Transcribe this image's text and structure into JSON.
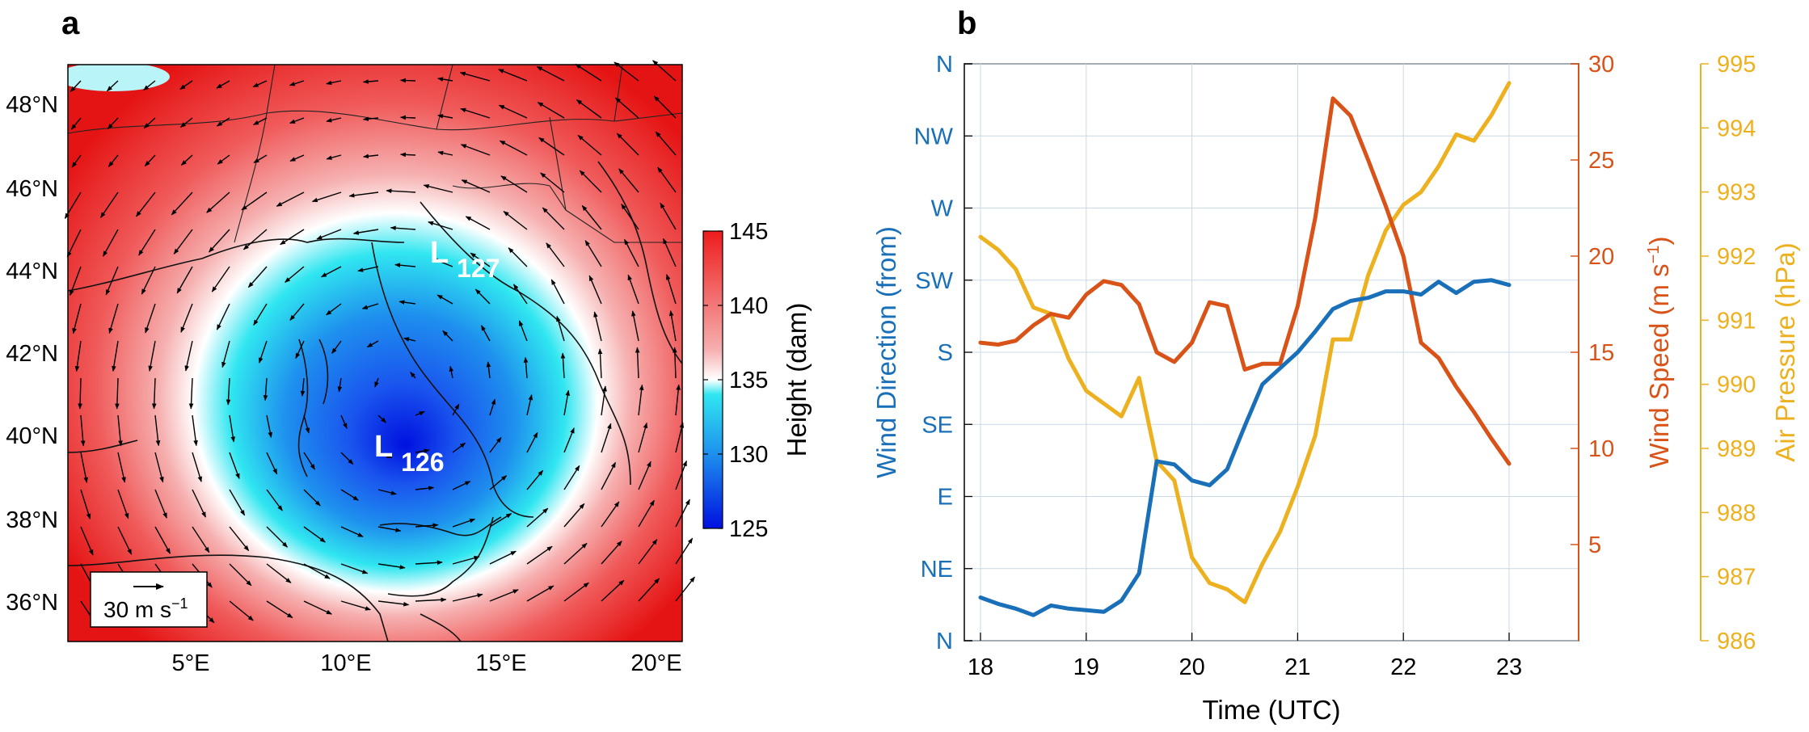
{
  "panel_a": {
    "label": "a",
    "lat_labels": [
      "48°N",
      "46°N",
      "44°N",
      "42°N",
      "40°N",
      "38°N",
      "36°N"
    ],
    "lon_labels": [
      "5°E",
      "10°E",
      "15°E",
      "20°E"
    ],
    "lows": [
      {
        "letter": "L",
        "value": "127"
      },
      {
        "letter": "L",
        "value": "126"
      }
    ],
    "reference_vector": {
      "value": "30 m s",
      "exponent": "−1"
    },
    "colorbar": {
      "title": "Height (dam)",
      "ticks": [
        "145",
        "140",
        "135",
        "130",
        "125"
      ],
      "colors": {
        "low": "#0010e0",
        "mid_low": "#1e90ee",
        "cyan": "#30e6f0",
        "white": "#ffffff",
        "pink": "#f6b0b0",
        "high": "#ee1c1c"
      }
    }
  },
  "chart_data": [
    {
      "type": "map",
      "panel": "a",
      "field": "geopotential height with wind vectors",
      "xlim": [
        1,
        21
      ],
      "ylim": [
        35,
        49
      ],
      "colorbar_range": [
        125,
        145
      ],
      "lows": [
        {
          "label": "L127",
          "lon": 13.5,
          "lat": 44.2
        },
        {
          "label": "L126",
          "lon": 12.0,
          "lat": 39.6
        }
      ]
    },
    {
      "type": "line",
      "panel": "b",
      "x": [
        18.0,
        18.167,
        18.333,
        18.5,
        18.667,
        18.833,
        19.0,
        19.167,
        19.333,
        19.5,
        19.667,
        19.833,
        20.0,
        20.167,
        20.333,
        20.5,
        20.667,
        20.833,
        21.0,
        21.167,
        21.333,
        21.5,
        21.667,
        21.833,
        22.0,
        22.167,
        22.333,
        22.5,
        22.667,
        22.833,
        23.0
      ],
      "xlim": [
        17.83,
        23.67
      ],
      "x_ticks": [
        18,
        19,
        20,
        21,
        22,
        23
      ],
      "xlabel": "Time (UTC)",
      "grid": true,
      "series": [
        {
          "name": "Wind Direction (from)",
          "axis": "left",
          "color": "#1a70b8",
          "ylim": [
            0,
            360
          ],
          "y_ticks": [
            "N",
            "NE",
            "E",
            "SE",
            "S",
            "SW",
            "W",
            "NW",
            "N"
          ],
          "values": [
            27,
            23,
            20,
            16,
            22,
            20,
            19,
            18,
            25,
            42,
            112,
            110,
            100,
            97,
            107,
            134,
            160,
            170,
            180,
            193,
            207,
            212,
            214,
            218,
            218,
            216,
            224,
            217,
            224,
            225,
            222
          ]
        },
        {
          "name": "Wind Speed (m s⁻¹)",
          "axis": "right1",
          "color": "#d95319",
          "ylim": [
            0,
            30
          ],
          "y_ticks": [
            5,
            10,
            15,
            20,
            25,
            30
          ],
          "values": [
            15.5,
            15.4,
            15.6,
            16.4,
            17.0,
            16.8,
            18.0,
            18.7,
            18.5,
            17.5,
            15.0,
            14.5,
            15.5,
            17.6,
            17.4,
            14.1,
            14.4,
            14.4,
            17.4,
            22.0,
            28.2,
            27.3,
            25.0,
            22.6,
            20.0,
            15.5,
            14.7,
            13.2,
            11.9,
            10.5,
            9.2
          ]
        },
        {
          "name": "Air Pressure (hPa)",
          "axis": "right2",
          "color": "#edb120",
          "ylim": [
            986,
            995
          ],
          "y_ticks": [
            986,
            987,
            988,
            989,
            990,
            991,
            992,
            993,
            994,
            995
          ],
          "values": [
            992.3,
            992.1,
            991.8,
            991.2,
            991.1,
            990.4,
            989.9,
            989.7,
            989.5,
            990.1,
            988.8,
            988.5,
            987.3,
            986.9,
            986.8,
            986.6,
            987.2,
            987.7,
            988.4,
            989.2,
            990.7,
            990.7,
            991.7,
            992.4,
            992.8,
            993.0,
            993.4,
            993.9,
            993.8,
            994.2,
            994.7
          ]
        }
      ]
    }
  ],
  "panel_b": {
    "label": "b",
    "left_axis_title": "Wind Direction (from)",
    "right1_axis_title": "Wind Speed (m s",
    "right1_axis_exp": "−1",
    "right1_axis_close": ")",
    "right2_axis_title": "Air Pressure (hPa)"
  }
}
